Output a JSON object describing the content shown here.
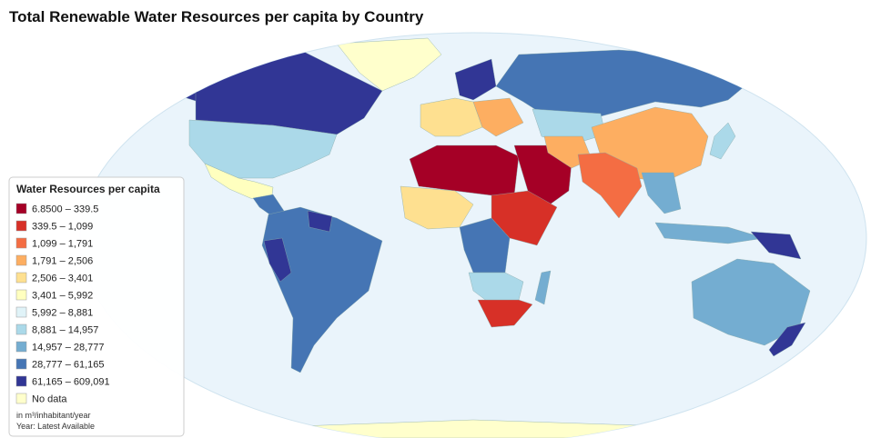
{
  "title": "Total Renewable Water Resources per capita by Country",
  "legend": {
    "title": "Water Resources per capita",
    "items": [
      {
        "label": "6.8500 – 339.5",
        "color": "#a50026"
      },
      {
        "label": "339.5 – 1,099",
        "color": "#d73027"
      },
      {
        "label": "1,099 – 1,791",
        "color": "#f46d43"
      },
      {
        "label": "1,791 – 2,506",
        "color": "#fdae61"
      },
      {
        "label": "2,506 – 3,401",
        "color": "#fee090"
      },
      {
        "label": "3,401 – 5,992",
        "color": "#ffffbf"
      },
      {
        "label": "5,992 – 8,881",
        "color": "#e0f3f8"
      },
      {
        "label": "8,881 – 14,957",
        "color": "#abd9e9"
      },
      {
        "label": "14,957 – 28,777",
        "color": "#74add1"
      },
      {
        "label": "28,777 – 61,165",
        "color": "#4575b4"
      },
      {
        "label": "61,165 – 609,091",
        "color": "#313695"
      },
      {
        "label": "No data",
        "color": "#ffffcc"
      }
    ],
    "notes": [
      "in m³/inhabitant/year",
      "Year: Latest Available"
    ]
  }
}
